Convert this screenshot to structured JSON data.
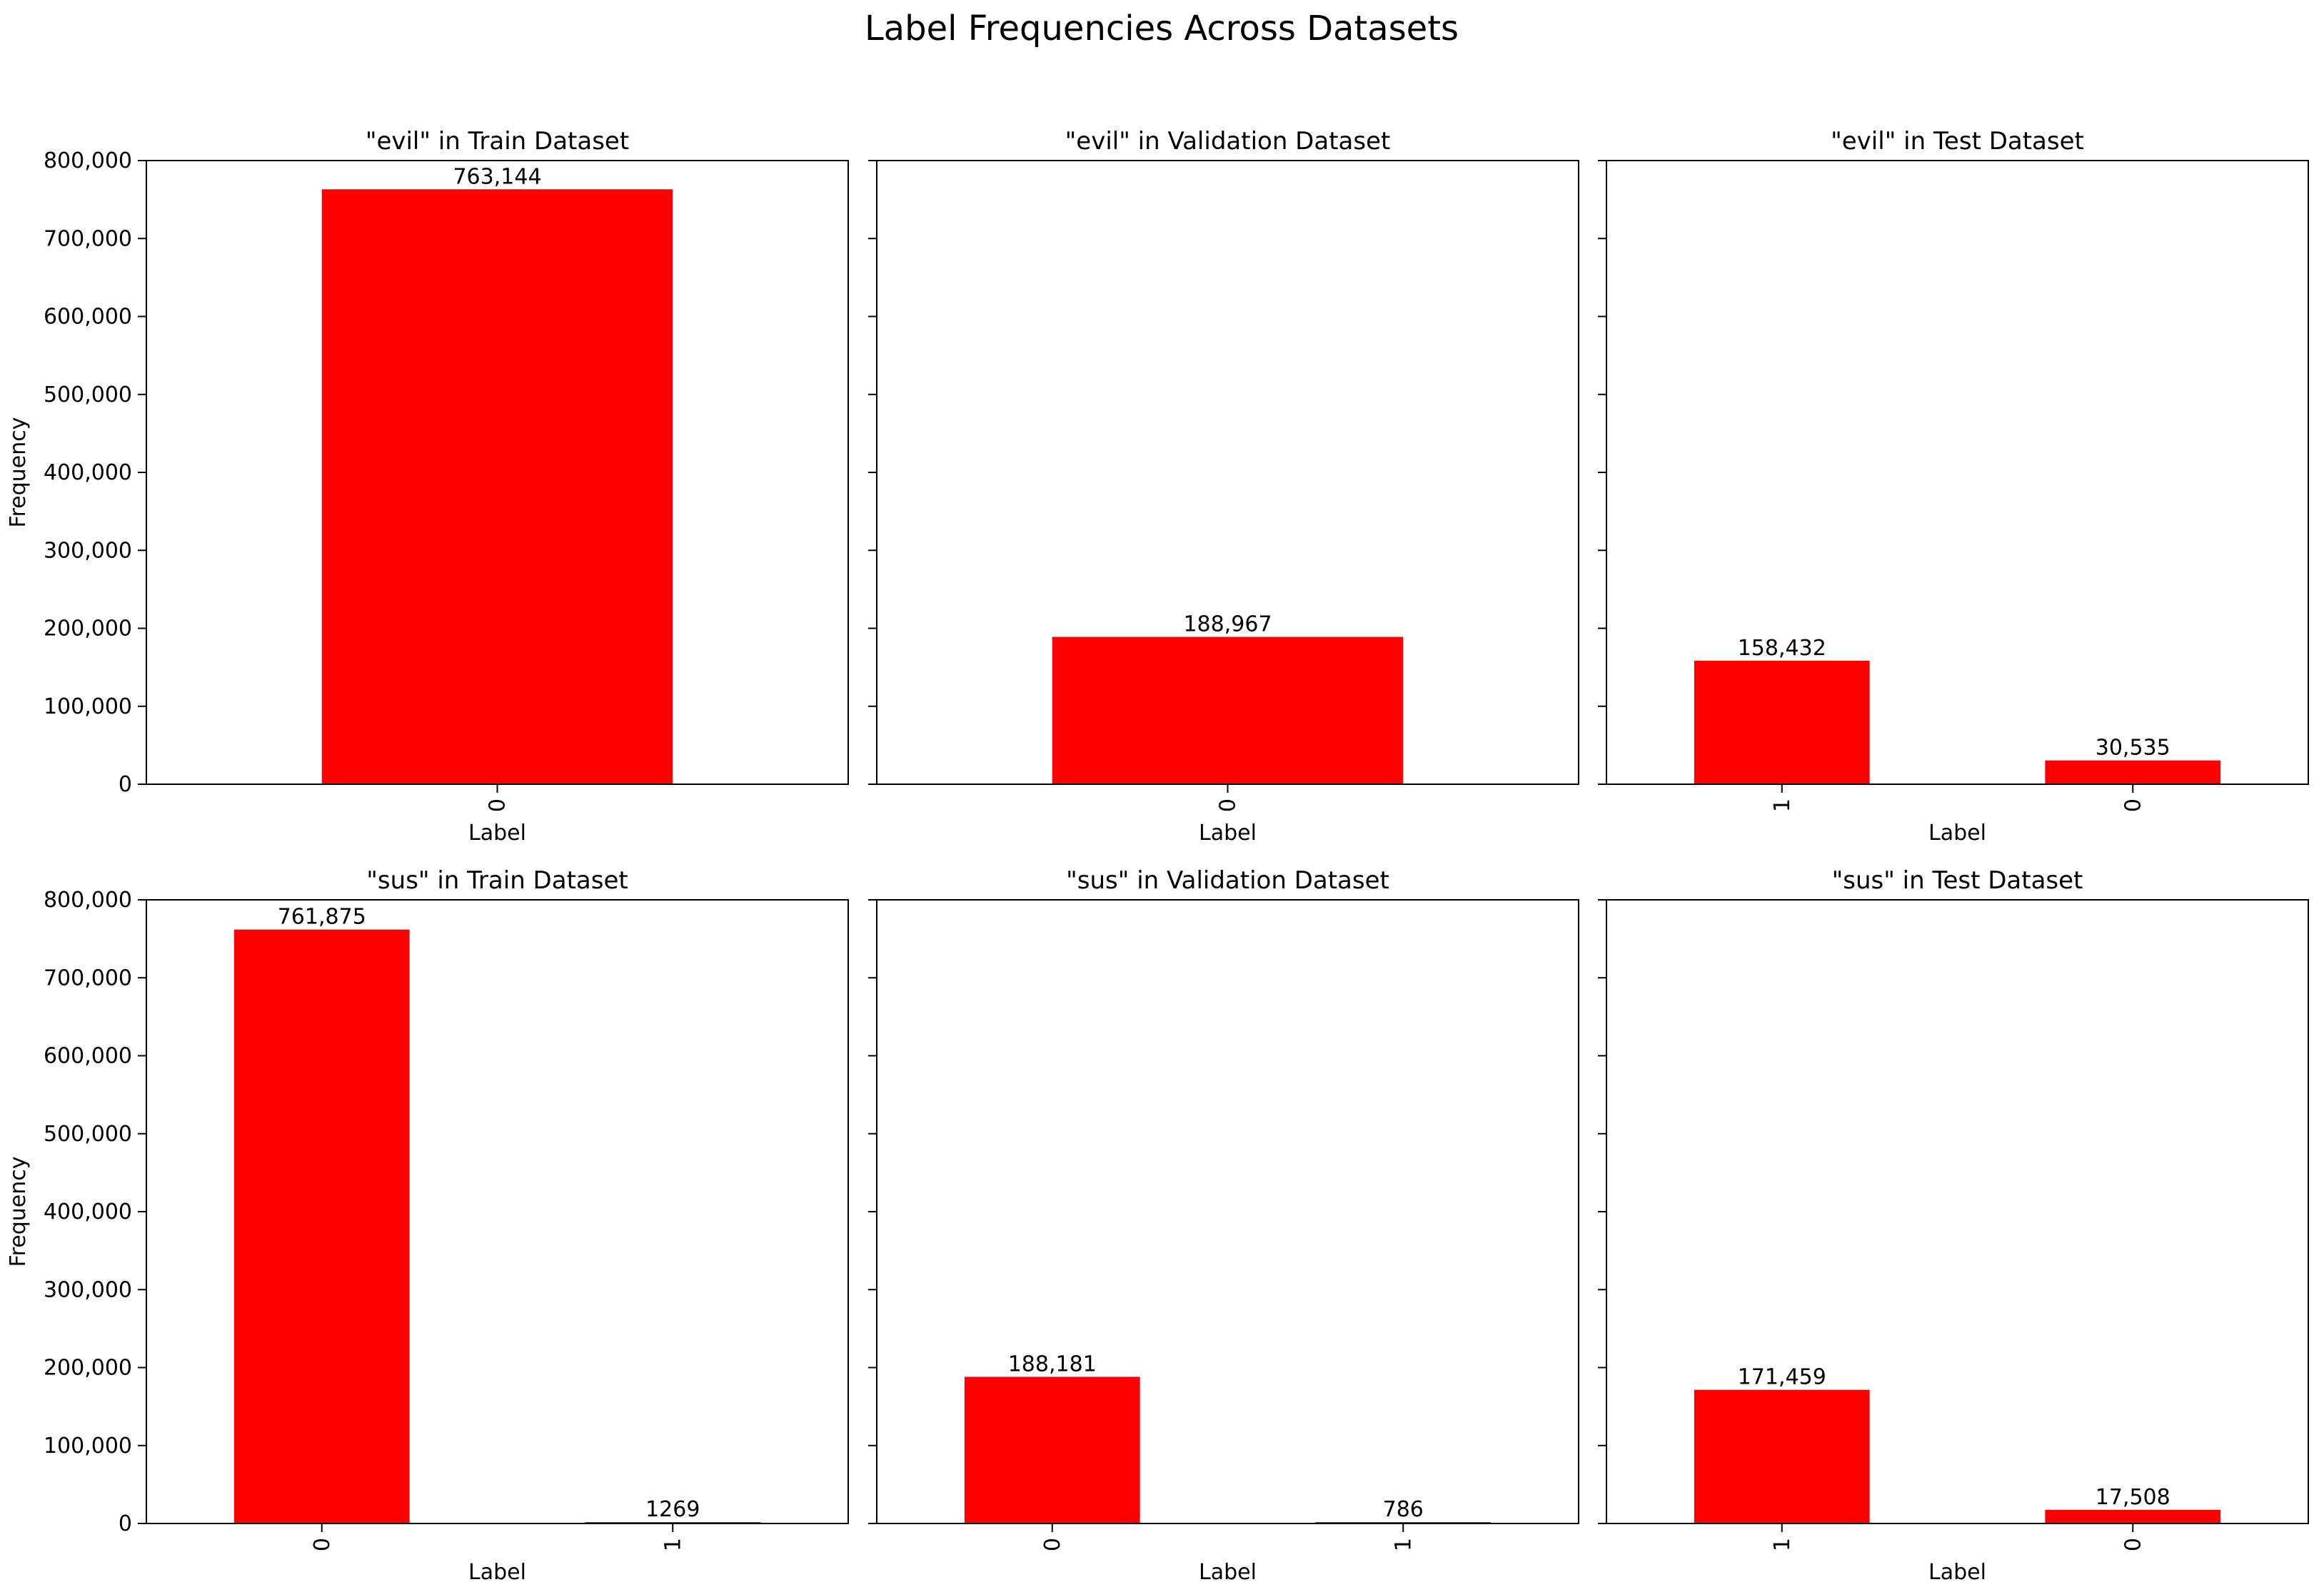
{
  "figure": {
    "suptitle": "Label Frequencies Across Datasets",
    "bar_color": "#ff0000"
  },
  "chart_data": [
    {
      "type": "bar",
      "title": "\"evil\" in Train Dataset",
      "xlabel": "Label",
      "ylabel": "Frequency",
      "categories": [
        "0"
      ],
      "values": [
        763144
      ],
      "value_labels": [
        "763,144"
      ],
      "ylim": [
        0,
        800000
      ],
      "yticks": [
        "0",
        "100,000",
        "200,000",
        "300,000",
        "400,000",
        "500,000",
        "600,000",
        "700,000",
        "800,000"
      ],
      "xtick_rotation": "vertical"
    },
    {
      "type": "bar",
      "title": "\"evil\" in Validation Dataset",
      "xlabel": "Label",
      "ylabel": "",
      "categories": [
        "0"
      ],
      "values": [
        188967
      ],
      "value_labels": [
        "188,967"
      ],
      "ylim": [
        0,
        800000
      ],
      "yticks": [],
      "xtick_rotation": "vertical"
    },
    {
      "type": "bar",
      "title": "\"evil\" in Test Dataset",
      "xlabel": "Label",
      "ylabel": "",
      "categories": [
        "1",
        "0"
      ],
      "values": [
        158432,
        30535
      ],
      "value_labels": [
        "158,432",
        "30,535"
      ],
      "ylim": [
        0,
        800000
      ],
      "yticks": [],
      "xtick_rotation": "vertical"
    },
    {
      "type": "bar",
      "title": "\"sus\" in Train Dataset",
      "xlabel": "Label",
      "ylabel": "Frequency",
      "categories": [
        "0",
        "1"
      ],
      "values": [
        761875,
        1269
      ],
      "value_labels": [
        "761,875",
        "1269"
      ],
      "ylim": [
        0,
        800000
      ],
      "yticks": [
        "0",
        "100,000",
        "200,000",
        "300,000",
        "400,000",
        "500,000",
        "600,000",
        "700,000",
        "800,000"
      ],
      "xtick_rotation": "vertical"
    },
    {
      "type": "bar",
      "title": "\"sus\" in Validation Dataset",
      "xlabel": "Label",
      "ylabel": "",
      "categories": [
        "0",
        "1"
      ],
      "values": [
        188181,
        786
      ],
      "value_labels": [
        "188,181",
        "786"
      ],
      "ylim": [
        0,
        800000
      ],
      "yticks": [],
      "xtick_rotation": "vertical"
    },
    {
      "type": "bar",
      "title": "\"sus\" in Test Dataset",
      "xlabel": "Label",
      "ylabel": "",
      "categories": [
        "1",
        "0"
      ],
      "values": [
        171459,
        17508
      ],
      "value_labels": [
        "171,459",
        "17,508"
      ],
      "ylim": [
        0,
        800000
      ],
      "yticks": [],
      "xtick_rotation": "vertical"
    }
  ]
}
